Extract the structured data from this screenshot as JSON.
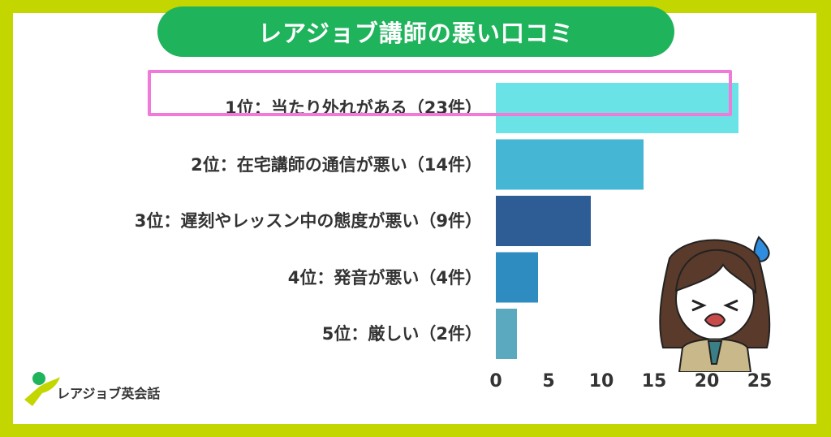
{
  "title": "レアジョブ講師の悪い口コミ",
  "logo_text": "レアジョブ英会話",
  "colors": {
    "background": "#c3d600",
    "title_pill": "#1fb35c",
    "highlight": "#f07ad8"
  },
  "chart_data": {
    "type": "bar",
    "orientation": "horizontal",
    "categories": [
      "1位：当たり外れがある（23件）",
      "2位：在宅講師の通信が悪い（14件）",
      "3位：遅刻やレッスン中の態度が悪い（9件）",
      "4位：発音が悪い（4件）",
      "5位：厳しい（2件）"
    ],
    "values": [
      23,
      14,
      9,
      4,
      2
    ],
    "bar_colors": [
      "#6ae3e6",
      "#45b6d4",
      "#2e5c94",
      "#2f8cc0",
      "#5aa9bf"
    ],
    "xlim": [
      0,
      25
    ],
    "xticks": [
      0,
      5,
      10,
      15,
      20,
      25
    ],
    "highlighted_index": 0,
    "grid": false,
    "title": "レアジョブ講師の悪い口コミ"
  }
}
